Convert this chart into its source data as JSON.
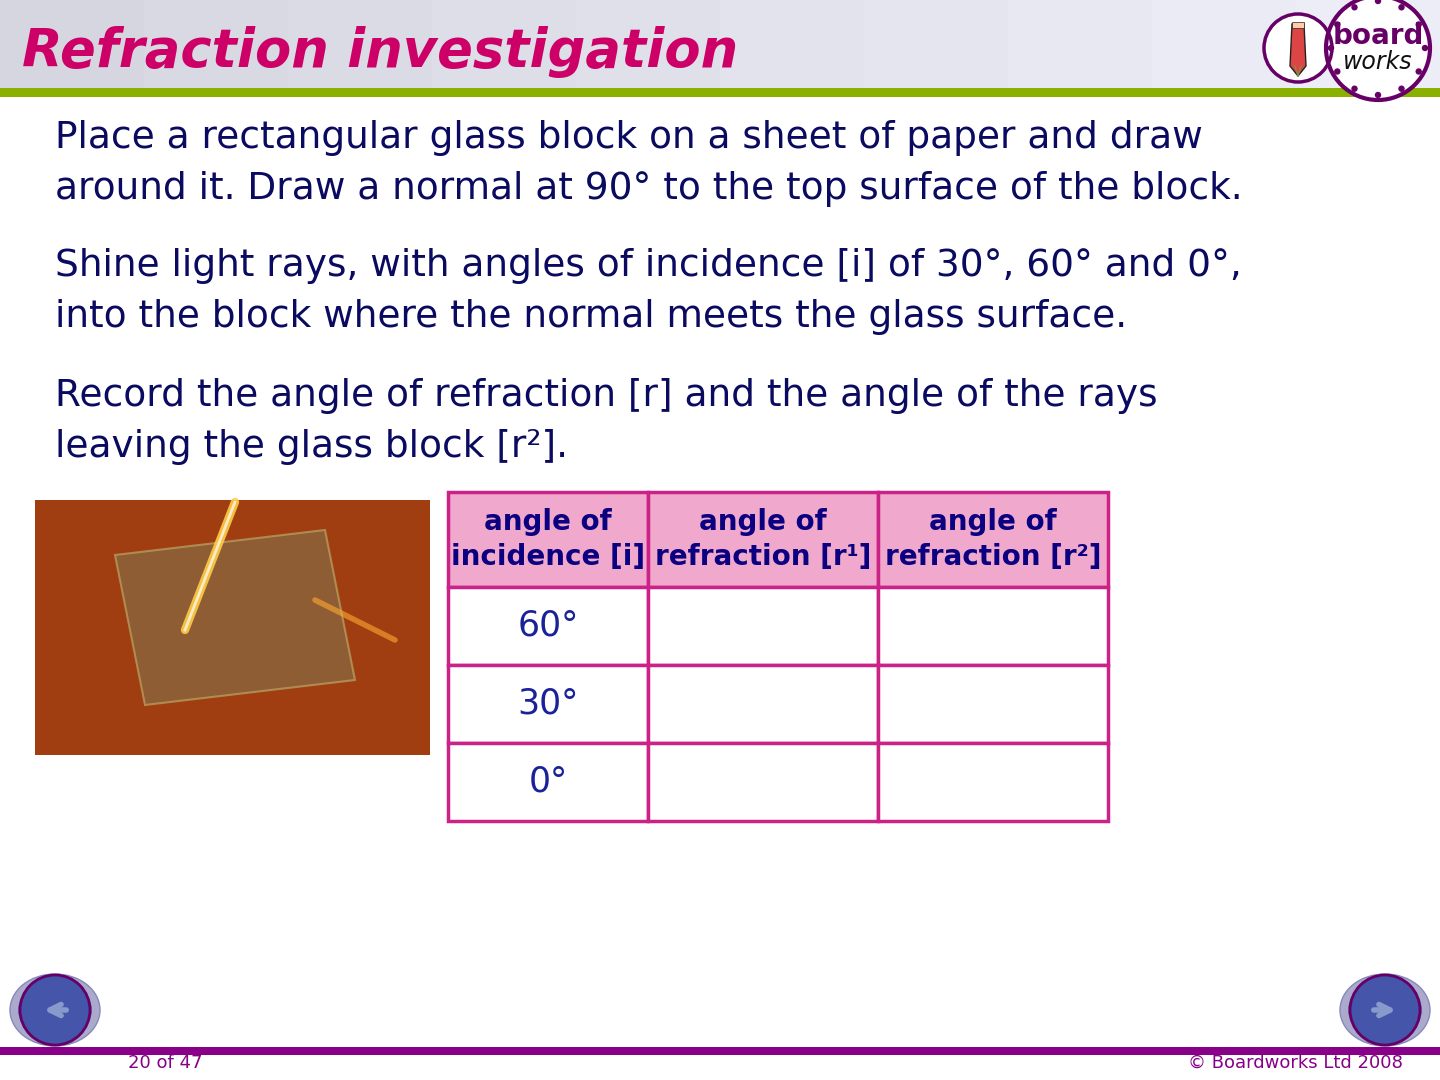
{
  "title": "Refraction investigation",
  "title_color": "#cc0066",
  "title_bar_bg": "#d0d0e0",
  "header_bar_color": "#8ab000",
  "body_bg": "#ffffff",
  "para1": "Place a rectangular glass block on a sheet of paper and draw\naround it. Draw a normal at 90° to the top surface of the block.",
  "para2": "Shine light rays, with angles of incidence [i] of 30°, 60° and 0°,\ninto the block where the normal meets the glass surface.",
  "para3": "Record the angle of refraction [r] and the angle of the rays\nleaving the glass block [r²].",
  "text_color": "#0a0a60",
  "table_header_bg": "#f0a8cc",
  "table_border_color": "#cc2288",
  "table_header_text_color": "#0a0080",
  "table_data_text_color": "#1a2299",
  "table_col1_header": "angle of\nincidence [i]",
  "table_col2_header": "angle of\nrefraction [r¹]",
  "table_col3_header": "angle of\nrefraction [r²]",
  "table_rows": [
    "60°",
    "30°",
    "0°"
  ],
  "footer_bar_color": "#880088",
  "footer_text_color": "#880088",
  "footer_left": "20 of 47",
  "footer_right": "© Boardworks Ltd 2008",
  "nav_outer_color": "#aaaacc",
  "nav_inner_color": "#4455aa",
  "nav_arrow_color": "#334488",
  "logo_purple": "#660066",
  "logo_dark": "#111111",
  "photo_bg": "#7a2800",
  "photo_mid": "#c05020",
  "photo_glass": "#8a6840",
  "photo_light1": "#ffcc44",
  "photo_light2": "#ffaa33"
}
